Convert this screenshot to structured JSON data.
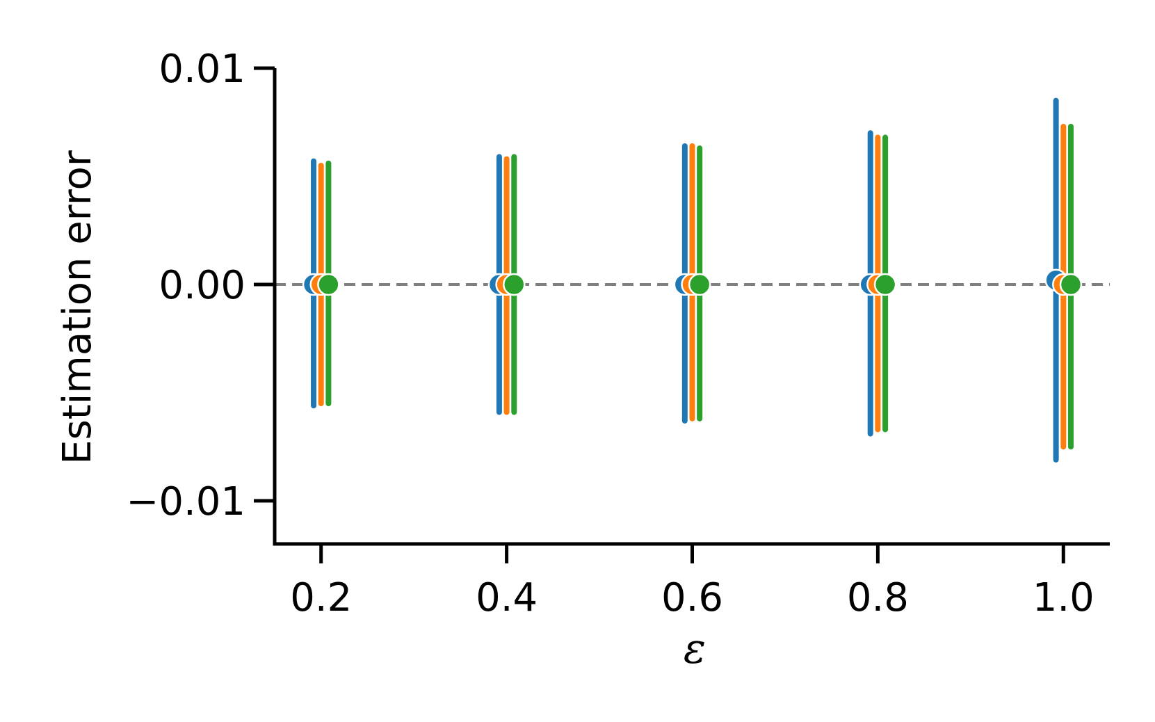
{
  "chart_data": {
    "type": "errorbar",
    "xlabel": "ε",
    "ylabel": "Estimation error",
    "x": [
      0.2,
      0.4,
      0.6,
      0.8,
      1.0
    ],
    "x_ticks": [
      "0.2",
      "0.4",
      "0.6",
      "0.8",
      "1.0"
    ],
    "y_ticks": [
      0.01,
      0.0,
      -0.01
    ],
    "y_tick_labels": [
      "0.01",
      "0.00",
      "−0.01"
    ],
    "xlim": [
      0.15,
      1.05
    ],
    "ylim": [
      -0.012,
      0.01
    ],
    "reference_line": {
      "y": 0.0,
      "style": "dashed",
      "color": "#808080"
    },
    "series": [
      {
        "color": "#1f77b4",
        "offset": -0.008,
        "values": [
          0.0,
          0.0,
          0.0,
          0.0,
          0.0002
        ],
        "upper": [
          0.0057,
          0.0059,
          0.0064,
          0.007,
          0.0085
        ],
        "lower": [
          -0.0056,
          -0.0059,
          -0.0063,
          -0.0069,
          -0.0081
        ]
      },
      {
        "color": "#ff7f0e",
        "offset": 0.0,
        "values": [
          0.0,
          0.0,
          0.0,
          0.0,
          0.0
        ],
        "upper": [
          0.0055,
          0.0058,
          0.0064,
          0.0068,
          0.0073
        ],
        "lower": [
          -0.0055,
          -0.0059,
          -0.0062,
          -0.0067,
          -0.0075
        ]
      },
      {
        "color": "#2ca02c",
        "offset": 0.008,
        "values": [
          0.0,
          0.0,
          0.0,
          0.0,
          0.0
        ],
        "upper": [
          0.0056,
          0.0059,
          0.0063,
          0.0068,
          0.0073
        ],
        "lower": [
          -0.0055,
          -0.0059,
          -0.0062,
          -0.0067,
          -0.0075
        ]
      }
    ]
  }
}
